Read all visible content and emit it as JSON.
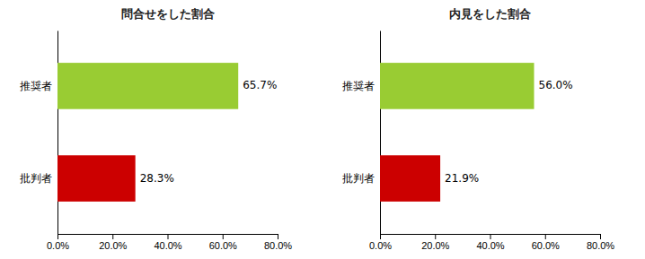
{
  "chart_data": [
    {
      "type": "bar",
      "orientation": "horizontal",
      "grid": false,
      "data_labels": true,
      "title": "問合せをした割合",
      "categories": [
        "批判者",
        "推奨者"
      ],
      "values": [
        28.3,
        65.7
      ],
      "value_labels": [
        "28.3%",
        "65.7%"
      ],
      "colors": [
        "#cc0000",
        "#99cc33"
      ],
      "xlim": [
        0,
        80
      ],
      "xticks": [
        {
          "value": 0,
          "label": "0.0%"
        },
        {
          "value": 20,
          "label": "20.0%"
        },
        {
          "value": 40,
          "label": "40.0%"
        },
        {
          "value": 60,
          "label": "60.0%"
        },
        {
          "value": 80,
          "label": "80.0%"
        }
      ]
    },
    {
      "type": "bar",
      "orientation": "horizontal",
      "grid": false,
      "data_labels": true,
      "title": "内見をした割合",
      "categories": [
        "批判者",
        "推奨者"
      ],
      "values": [
        21.9,
        56.0
      ],
      "value_labels": [
        "21.9%",
        "56.0%"
      ],
      "colors": [
        "#cc0000",
        "#99cc33"
      ],
      "xlim": [
        0,
        80
      ],
      "xticks": [
        {
          "value": 0,
          "label": "0.0%"
        },
        {
          "value": 20,
          "label": "20.0%"
        },
        {
          "value": 40,
          "label": "40.0%"
        },
        {
          "value": 60,
          "label": "60.0%"
        },
        {
          "value": 80,
          "label": "80.0%"
        }
      ]
    }
  ]
}
